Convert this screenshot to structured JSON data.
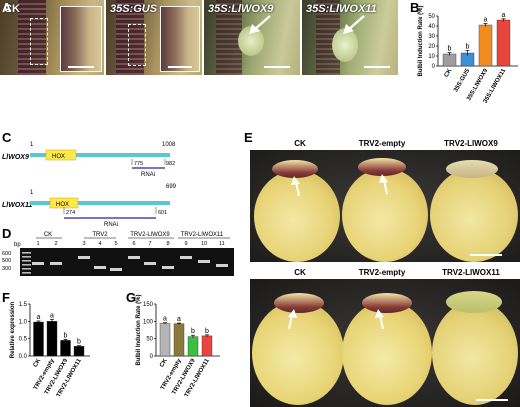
{
  "panels": {
    "A": "A",
    "B": "B",
    "C": "C",
    "D": "D",
    "E": "E",
    "F": "F",
    "G": "G"
  },
  "panel_a": {
    "images": [
      "CK",
      "35S:GUS",
      "35S:LlWOX9",
      "35S:LlWOX11"
    ]
  },
  "panel_c": {
    "gene1": {
      "name": "LlWOX9",
      "start": "1",
      "end": "1008",
      "domain": "HOX",
      "rnai_start": "775",
      "rnai_end": "982",
      "rnai": "RNAi"
    },
    "gene2": {
      "name": "LlWOX11",
      "start": "1",
      "end": "699",
      "domain": "HOX",
      "rnai_start": "274",
      "rnai_end": "601",
      "rnai": "RNAi"
    }
  },
  "panel_d": {
    "bp_label": "bp",
    "ladder": [
      "600",
      "500",
      "300"
    ],
    "groups": [
      "CK",
      "TRV2",
      "TRV2-LlWOX9",
      "TRV2-LlWOX11"
    ],
    "lanes": [
      "1",
      "2",
      "3",
      "4",
      "5",
      "6",
      "7",
      "8",
      "9",
      "10",
      "11"
    ]
  },
  "panel_e": {
    "top_labels": [
      "CK",
      "TRV2-empty",
      "TRV2-LlWOX9"
    ],
    "bottom_labels": [
      "CK",
      "TRV2-empty",
      "TRV2-LlWOX11"
    ]
  },
  "chart_data": [
    {
      "id": "B",
      "type": "bar",
      "ylabel": "Bulbil Induction Rate (%)",
      "ylim": [
        0,
        50
      ],
      "yticks": [
        0,
        10,
        20,
        30,
        40,
        50
      ],
      "categories": [
        "CK",
        "35S:GUS",
        "35S:LlWOX9",
        "35S:LlWOX11"
      ],
      "values": [
        12,
        13,
        41,
        46
      ],
      "errors": [
        1.5,
        2.5,
        1.5,
        1.2
      ],
      "letters": [
        "b",
        "b",
        "a",
        "a"
      ],
      "colors": [
        "#9e9e9e",
        "#3a8fd9",
        "#f28c1e",
        "#e8453c"
      ]
    },
    {
      "id": "F",
      "type": "bar",
      "ylabel": "Relative expression",
      "ylim": [
        0,
        1.5
      ],
      "yticks": [
        0.0,
        0.5,
        1.0,
        1.5
      ],
      "categories": [
        "CK",
        "TRV2-empty",
        "TRV2-LlWOX9",
        "TRV2-LlWOX11"
      ],
      "values": [
        0.98,
        1.0,
        0.45,
        0.28
      ],
      "errors": [
        0.03,
        0.06,
        0.03,
        0.02
      ],
      "letters": [
        "a",
        "a",
        "b",
        "b"
      ],
      "colors": [
        "#000000",
        "#000000",
        "#000000",
        "#000000"
      ]
    },
    {
      "id": "G",
      "type": "bar",
      "ylabel": "Bulbil Induction Rate (%)",
      "ylim": [
        0,
        150
      ],
      "yticks": [
        0,
        50,
        100,
        150
      ],
      "categories": [
        "CK",
        "TRV2-empty",
        "TRV2-LlWOX9",
        "TRV2-LlWOX11"
      ],
      "values": [
        94,
        93,
        56,
        58
      ],
      "errors": [
        2,
        2,
        4,
        3
      ],
      "letters": [
        "a",
        "a",
        "b",
        "b"
      ],
      "colors": [
        "#b5b5b5",
        "#8c7a3c",
        "#3cbf3c",
        "#e8453c"
      ]
    }
  ]
}
